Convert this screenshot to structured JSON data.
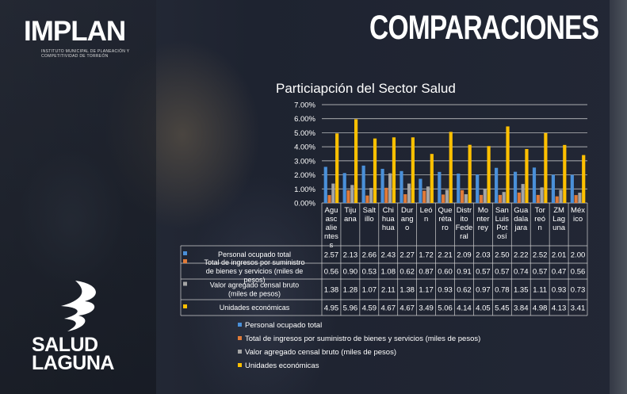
{
  "brand": {
    "implan": "IMPLAN",
    "implan_subtitle": "INSTITUTO MUNICIPAL DE PLANEACIÓN Y COMPETITIVIDAD DE TORREÓN",
    "headline": "COMPARACIONES",
    "salud_line1": "SALUD",
    "salud_line2": "LAGUNA"
  },
  "colors": {
    "series": [
      "#4a90d9",
      "#e07b39",
      "#a5a5a5",
      "#ffc000"
    ]
  },
  "chart_data": {
    "type": "bar",
    "title": "Particiapción del Sector Salud",
    "y_tick_labels": [
      "7.00%",
      "6.00%",
      "5.00%",
      "4.00%",
      "3.00%",
      "2.00%",
      "1.00%",
      "0.00%"
    ],
    "ylim": [
      0,
      7
    ],
    "grid": true,
    "categories": [
      [
        "Agu",
        "asc",
        "alie",
        "ntes",
        "s"
      ],
      [
        "Tiju",
        "ana"
      ],
      [
        "Salt",
        "illo"
      ],
      [
        "Chi",
        "hua",
        "hua"
      ],
      [
        "Dur",
        "ang",
        "o"
      ],
      [
        "Leó",
        "n"
      ],
      [
        "Que",
        "réta",
        "ro"
      ],
      [
        "Distr",
        "ito",
        "Fede",
        "ral"
      ],
      [
        "Mo",
        "nter",
        "rey"
      ],
      [
        "San",
        "Luis",
        "Pot",
        "osí"
      ],
      [
        "Gua",
        "dala",
        "jara"
      ],
      [
        "Tor",
        "reó",
        "n"
      ],
      [
        "ZM",
        "Lag",
        "una"
      ],
      [
        "Méx",
        "ico"
      ]
    ],
    "series": [
      {
        "name": "Personal ocupado total",
        "table_label": [
          "Personal ocupado total"
        ],
        "values": [
          2.57,
          2.13,
          2.66,
          2.43,
          2.27,
          1.72,
          2.21,
          2.09,
          2.03,
          2.5,
          2.22,
          2.52,
          2.01,
          2.0
        ],
        "display": [
          "2.57",
          "2.13",
          "2.66",
          "2.43",
          "2.27",
          "1.72",
          "2.21",
          "2.09",
          "2.03",
          "2.50",
          "2.22",
          "2.52",
          "2.01",
          "2.00"
        ]
      },
      {
        "name": "Total de ingresos por suministro de bienes y servicios (miles de pesos)",
        "table_label": [
          "Total de ingresos por suministro",
          "de bienes y servicios (miles de",
          "pesos)"
        ],
        "values": [
          0.56,
          0.9,
          0.53,
          1.08,
          0.62,
          0.87,
          0.6,
          0.91,
          0.57,
          0.57,
          0.74,
          0.57,
          0.47,
          0.56
        ],
        "display": [
          "0.56",
          "0.90",
          "0.53",
          "1.08",
          "0.62",
          "0.87",
          "0.60",
          "0.91",
          "0.57",
          "0.57",
          "0.74",
          "0.57",
          "0.47",
          "0.56"
        ]
      },
      {
        "name": "Valor agregado censal bruto (miles de pesos)",
        "table_label": [
          "Valor agregado censal bruto",
          "(miles de pesos)"
        ],
        "values": [
          1.38,
          1.28,
          1.07,
          2.11,
          1.38,
          1.17,
          0.93,
          0.62,
          0.97,
          0.78,
          1.35,
          1.11,
          0.93,
          0.73
        ],
        "display": [
          "1.38",
          "1.28",
          "1.07",
          "2.11",
          "1.38",
          "1.17",
          "0.93",
          "0.62",
          "0.97",
          "0.78",
          "1.35",
          "1.11",
          "0.93",
          "0.73"
        ]
      },
      {
        "name": "Unidades económicas",
        "table_label": [
          "Unidades económicas"
        ],
        "values": [
          4.95,
          5.96,
          4.59,
          4.67,
          4.67,
          3.49,
          5.06,
          4.14,
          4.05,
          5.45,
          3.84,
          4.98,
          4.13,
          3.41
        ],
        "display": [
          "4.95",
          "5.96",
          "4.59",
          "4.67",
          "4.67",
          "3.49",
          "5.06",
          "4.14",
          "4.05",
          "5.45",
          "3.84",
          "4.98",
          "4.13",
          "3.41"
        ]
      }
    ]
  }
}
